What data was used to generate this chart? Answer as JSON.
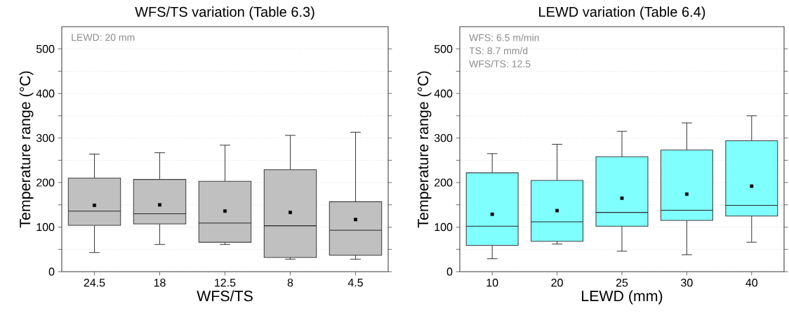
{
  "chart_data": [
    {
      "type": "box",
      "title": "WFS/TS variation (Table 6.3)",
      "xlabel": "WFS/TS",
      "ylabel": "Temperature range (°C)",
      "categories": [
        "24.5",
        "18",
        "12.5",
        "8",
        "4.5"
      ],
      "color": "#c0c0c0",
      "boxes": [
        {
          "low": 43,
          "q1": 104,
          "median": 136,
          "q3": 210,
          "high": 264,
          "mean": 149
        },
        {
          "low": 61,
          "q1": 107,
          "median": 130,
          "q3": 207,
          "high": 267,
          "mean": 150
        },
        {
          "low": 61,
          "q1": 66,
          "median": 109,
          "q3": 203,
          "high": 284,
          "mean": 136
        },
        {
          "low": 28,
          "q1": 32,
          "median": 103,
          "q3": 229,
          "high": 306,
          "mean": 133
        },
        {
          "low": 28,
          "q1": 37,
          "median": 93,
          "q3": 157,
          "high": 313,
          "mean": 117
        }
      ],
      "ylim": [
        0,
        550
      ],
      "yticks": [
        0,
        {
          "value": 50,
          "label": null
        },
        100,
        {
          "value": 150,
          "label": null
        },
        200,
        {
          "value": 250,
          "label": null
        },
        300,
        {
          "value": 350,
          "label": null
        },
        400,
        {
          "value": 450,
          "label": null
        },
        500
      ],
      "grid": "y",
      "annotations": [
        "LEWD: 20 mm"
      ]
    },
    {
      "type": "box",
      "title": "LEWD variation (Table 6.4)",
      "xlabel": "LEWD (mm)",
      "ylabel": "Temperature range (°C)",
      "categories": [
        "10",
        "20",
        "25",
        "30",
        "40"
      ],
      "color": "#80ffff",
      "boxes": [
        {
          "low": 29,
          "q1": 59,
          "median": 102,
          "q3": 222,
          "high": 265,
          "mean": 129
        },
        {
          "low": 62,
          "q1": 68,
          "median": 112,
          "q3": 205,
          "high": 286,
          "mean": 137
        },
        {
          "low": 46,
          "q1": 102,
          "median": 133,
          "q3": 258,
          "high": 315,
          "mean": 165
        },
        {
          "low": 38,
          "q1": 115,
          "median": 138,
          "q3": 273,
          "high": 334,
          "mean": 174
        },
        {
          "low": 66,
          "q1": 125,
          "median": 149,
          "q3": 294,
          "high": 350,
          "mean": 192
        }
      ],
      "ylim": [
        0,
        550
      ],
      "yticks": [
        0,
        {
          "value": 50,
          "label": null
        },
        100,
        {
          "value": 150,
          "label": null
        },
        200,
        {
          "value": 250,
          "label": null
        },
        300,
        {
          "value": 350,
          "label": null
        },
        400,
        {
          "value": 450,
          "label": null
        },
        500
      ],
      "grid": "y",
      "annotations": [
        "WFS: 6.5 m/min",
        "TS: 8.7 mm/d",
        "WFS/TS: 12.5"
      ]
    }
  ]
}
